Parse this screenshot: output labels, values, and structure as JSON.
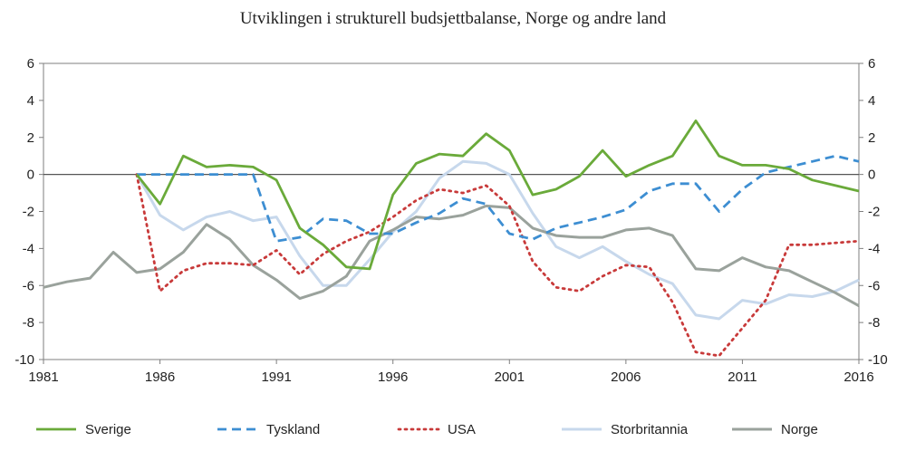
{
  "chart_data": {
    "type": "line",
    "title": "Utviklingen i strukturell budsjettbalanse, Norge og andre land",
    "xlabel": "",
    "ylabel": "",
    "xlim": [
      1981,
      2016
    ],
    "ylim": [
      -10,
      6
    ],
    "x_ticks": [
      1981,
      1986,
      1991,
      1996,
      2001,
      2006,
      2011,
      2016
    ],
    "y_ticks": [
      6,
      4,
      2,
      0,
      -2,
      -4,
      -6,
      -8,
      -10
    ],
    "grid": false,
    "legend_position": "bottom",
    "series": [
      {
        "name": "Sverige",
        "color": "#6aaa3a",
        "dash": "solid",
        "x": [
          1985,
          1986,
          1987,
          1988,
          1989,
          1990,
          1991,
          1992,
          1993,
          1994,
          1995,
          1996,
          1997,
          1998,
          1999,
          2000,
          2001,
          2002,
          2003,
          2004,
          2005,
          2006,
          2007,
          2008,
          2009,
          2010,
          2011,
          2012,
          2013,
          2014,
          2015,
          2016
        ],
        "values": [
          0,
          -1.6,
          1.0,
          0.4,
          0.5,
          0.4,
          -0.3,
          -2.9,
          -3.8,
          -5.0,
          -5.1,
          -1.1,
          0.6,
          1.1,
          1.0,
          2.2,
          1.3,
          -1.1,
          -0.8,
          -0.1,
          1.3,
          -0.1,
          0.5,
          1.0,
          2.9,
          1.0,
          0.5,
          0.5,
          0.3,
          -0.3,
          -0.6,
          -0.9
        ]
      },
      {
        "name": "Tyskland",
        "color": "#3d8ed2",
        "dash": "dashed",
        "x": [
          1985,
          1986,
          1987,
          1988,
          1989,
          1990,
          1991,
          1992,
          1993,
          1994,
          1995,
          1996,
          1997,
          1998,
          1999,
          2000,
          2001,
          2002,
          2003,
          2004,
          2005,
          2006,
          2007,
          2008,
          2009,
          2010,
          2011,
          2012,
          2013,
          2014,
          2015,
          2016
        ],
        "values": [
          0,
          0,
          0,
          0,
          0,
          0,
          -3.6,
          -3.4,
          -2.4,
          -2.5,
          -3.2,
          -3.2,
          -2.6,
          -2.1,
          -1.3,
          -1.6,
          -3.2,
          -3.5,
          -2.9,
          -2.6,
          -2.3,
          -1.9,
          -0.9,
          -0.5,
          -0.5,
          -2.0,
          -0.8,
          0.1,
          0.4,
          0.7,
          1.0,
          0.7
        ]
      },
      {
        "name": "USA",
        "color": "#c83a3a",
        "dash": "dotted",
        "x": [
          1985,
          1986,
          1987,
          1988,
          1989,
          1990,
          1991,
          1992,
          1993,
          1994,
          1995,
          1996,
          1997,
          1998,
          1999,
          2000,
          2001,
          2002,
          2003,
          2004,
          2005,
          2006,
          2007,
          2008,
          2009,
          2010,
          2011,
          2012,
          2013,
          2014,
          2015,
          2016
        ],
        "values": [
          0,
          -6.3,
          -5.2,
          -4.8,
          -4.8,
          -4.9,
          -4.1,
          -5.4,
          -4.3,
          -3.6,
          -3.1,
          -2.3,
          -1.4,
          -0.8,
          -1.0,
          -0.6,
          -1.7,
          -4.7,
          -6.1,
          -6.3,
          -5.5,
          -4.9,
          -5.0,
          -6.9,
          -9.6,
          -9.8,
          -8.3,
          -6.8,
          -3.8,
          -3.8,
          -3.7,
          -3.6
        ]
      },
      {
        "name": "Storbritannia",
        "color": "#c7d8ec",
        "dash": "solid",
        "x": [
          1985,
          1986,
          1987,
          1988,
          1989,
          1990,
          1991,
          1992,
          1993,
          1994,
          1995,
          1996,
          1997,
          1998,
          1999,
          2000,
          2001,
          2002,
          2003,
          2004,
          2005,
          2006,
          2007,
          2008,
          2009,
          2010,
          2011,
          2012,
          2013,
          2014,
          2015,
          2016
        ],
        "values": [
          0,
          -2.2,
          -3.0,
          -2.3,
          -2.0,
          -2.5,
          -2.3,
          -4.4,
          -6.0,
          -6.0,
          -4.6,
          -3.1,
          -2.0,
          -0.2,
          0.7,
          0.6,
          0.0,
          -2.1,
          -3.9,
          -4.5,
          -3.9,
          -4.7,
          -5.4,
          -5.9,
          -7.6,
          -7.8,
          -6.8,
          -7.0,
          -6.5,
          -6.6,
          -6.3,
          -5.7
        ]
      },
      {
        "name": "Norge",
        "color": "#9aa29c",
        "dash": "solid",
        "x": [
          1981,
          1982,
          1983,
          1984,
          1985,
          1986,
          1987,
          1988,
          1989,
          1990,
          1991,
          1992,
          1993,
          1994,
          1995,
          1996,
          1997,
          1998,
          1999,
          2000,
          2001,
          2002,
          2003,
          2004,
          2005,
          2006,
          2007,
          2008,
          2009,
          2010,
          2011,
          2012,
          2013,
          2014,
          2015,
          2016
        ],
        "values": [
          -6.1,
          -5.8,
          -5.6,
          -4.2,
          -5.3,
          -5.1,
          -4.2,
          -2.7,
          -3.5,
          -4.9,
          -5.7,
          -6.7,
          -6.3,
          -5.5,
          -3.6,
          -3.0,
          -2.3,
          -2.4,
          -2.2,
          -1.7,
          -1.8,
          -2.9,
          -3.3,
          -3.4,
          -3.4,
          -3.0,
          -2.9,
          -3.3,
          -5.1,
          -5.2,
          -4.5,
          -5.0,
          -5.2,
          -5.8,
          -6.4,
          -7.1
        ]
      }
    ]
  }
}
